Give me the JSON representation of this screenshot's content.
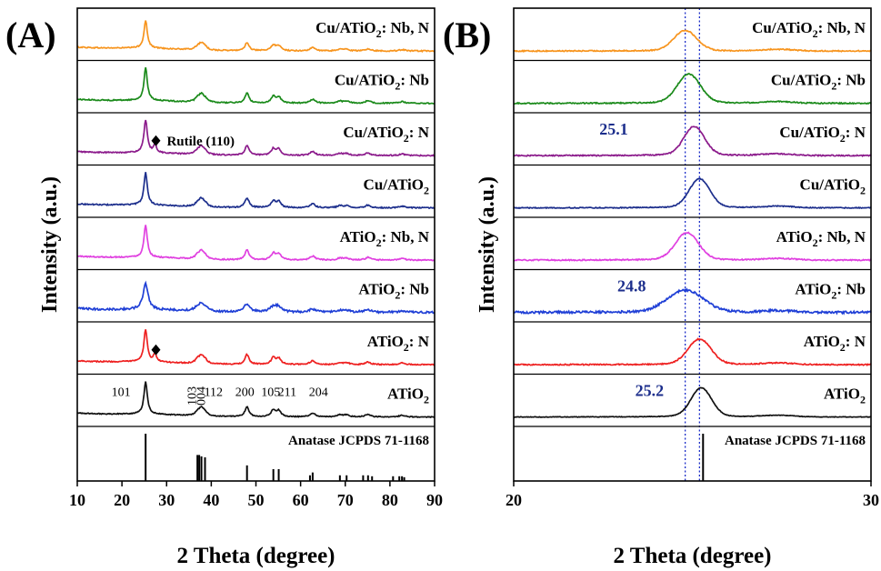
{
  "figure": {
    "panels": [
      {
        "letter": "(A)",
        "xlabel": "2 Theta (degree)",
        "ylabel": "Intensity (a.u.)",
        "xlim": [
          10,
          90
        ],
        "xticks": [
          10,
          20,
          30,
          40,
          50,
          60,
          70,
          80,
          90
        ]
      },
      {
        "letter": "(B)",
        "xlabel": "2 Theta (degree)",
        "ylabel": "Intensity (a.u.)",
        "xlim": [
          20,
          30
        ],
        "xticks": [
          20,
          30
        ]
      }
    ]
  },
  "chart_data": [
    {
      "type": "line",
      "panel": "A",
      "xlabel": "2 Theta (degree)",
      "ylabel": "Intensity (a.u.)",
      "xlim": [
        10,
        90
      ],
      "x_ticks": [
        10,
        20,
        30,
        40,
        50,
        60,
        70,
        80,
        90
      ],
      "stacked": true,
      "y_ticks_shown": false,
      "series": [
        {
          "name": "Cu/ATiO₂: Nb, N",
          "base": "Cu/ATiO",
          "sub": "2",
          "suffix": ": Nb, N",
          "color": "#f7941d",
          "peak_scale": 0.85,
          "width_scale": 1.0,
          "shift": 0,
          "noise": 1.0,
          "rutile": false
        },
        {
          "name": "Cu/ATiO₂: Nb",
          "base": "Cu/ATiO",
          "sub": "2",
          "suffix": ": Nb",
          "color": "#1a8a1a",
          "peak_scale": 1.0,
          "width_scale": 1.0,
          "shift": 0,
          "noise": 1.0,
          "rutile": false
        },
        {
          "name": "Cu/ATiO₂: N",
          "base": "Cu/ATiO",
          "sub": "2",
          "suffix": ": N",
          "color": "#8b1a8b",
          "peak_scale": 1.0,
          "width_scale": 1.0,
          "shift": 0,
          "noise": 1.0,
          "rutile": true
        },
        {
          "name": "Cu/ATiO₂",
          "base": "Cu/ATiO",
          "sub": "2",
          "suffix": "",
          "color": "#1c2e8c",
          "peak_scale": 1.0,
          "width_scale": 1.0,
          "shift": 0,
          "noise": 1.0,
          "rutile": false
        },
        {
          "name": "ATiO₂: Nb, N",
          "base": "ATiO",
          "sub": "2",
          "suffix": ": Nb, N",
          "color": "#e040e0",
          "peak_scale": 1.0,
          "width_scale": 1.0,
          "shift": 0,
          "noise": 1.0,
          "rutile": false
        },
        {
          "name": "ATiO₂: Nb",
          "base": "ATiO",
          "sub": "2",
          "suffix": ": Nb",
          "color": "#1f3fd6",
          "peak_scale": 0.8,
          "width_scale": 1.5,
          "shift": 0,
          "noise": 1.8,
          "rutile": false
        },
        {
          "name": "ATiO₂: N",
          "base": "ATiO",
          "sub": "2",
          "suffix": ": N",
          "color": "#ee2020",
          "peak_scale": 1.0,
          "width_scale": 1.0,
          "shift": 0,
          "noise": 1.0,
          "rutile": true
        },
        {
          "name": "ATiO₂",
          "base": "ATiO",
          "sub": "2",
          "suffix": "",
          "color": "#111111",
          "peak_scale": 1.0,
          "width_scale": 1.0,
          "shift": 0,
          "noise": 0.8,
          "rutile": false
        }
      ],
      "anatase_peaks": [
        {
          "x": 25.3,
          "h": 1.0,
          "w": 0.45
        },
        {
          "x": 37.0,
          "h": 0.12,
          "w": 0.7
        },
        {
          "x": 37.8,
          "h": 0.2,
          "w": 0.6
        },
        {
          "x": 38.6,
          "h": 0.1,
          "w": 0.6
        },
        {
          "x": 48.0,
          "h": 0.3,
          "w": 0.55
        },
        {
          "x": 53.9,
          "h": 0.2,
          "w": 0.6
        },
        {
          "x": 55.1,
          "h": 0.18,
          "w": 0.6
        },
        {
          "x": 62.7,
          "h": 0.12,
          "w": 0.7
        },
        {
          "x": 68.8,
          "h": 0.06,
          "w": 0.7
        },
        {
          "x": 70.3,
          "h": 0.06,
          "w": 0.7
        },
        {
          "x": 75.1,
          "h": 0.08,
          "w": 0.7
        },
        {
          "x": 82.7,
          "h": 0.05,
          "w": 0.8
        }
      ],
      "rutile_peak": {
        "x": 27.4,
        "h": 0.28,
        "w": 0.35
      },
      "rutile_label": "Rutile (110)",
      "miller_indices": [
        {
          "label": "101",
          "x": 19.8,
          "rotate": false
        },
        {
          "label": "103",
          "x": 35.8,
          "rotate": true
        },
        {
          "label": "004",
          "x": 37.8,
          "rotate": true
        },
        {
          "label": "112",
          "x": 40.5,
          "rotate": false
        },
        {
          "label": "200",
          "x": 47.5,
          "rotate": false
        },
        {
          "label": "105",
          "x": 53.3,
          "rotate": false
        },
        {
          "label": "211",
          "x": 57.0,
          "rotate": false
        },
        {
          "label": "204",
          "x": 64.0,
          "rotate": false
        }
      ],
      "reference": {
        "label": "Anatase JCPDS 71-1168",
        "lines": [
          {
            "x": 25.3,
            "h": 1.0
          },
          {
            "x": 36.9,
            "h": 0.55
          },
          {
            "x": 37.3,
            "h": 0.55
          },
          {
            "x": 37.8,
            "h": 0.52
          },
          {
            "x": 38.6,
            "h": 0.5
          },
          {
            "x": 48.0,
            "h": 0.33
          },
          {
            "x": 53.9,
            "h": 0.25
          },
          {
            "x": 55.1,
            "h": 0.25
          },
          {
            "x": 62.1,
            "h": 0.12
          },
          {
            "x": 62.7,
            "h": 0.18
          },
          {
            "x": 68.8,
            "h": 0.12
          },
          {
            "x": 70.3,
            "h": 0.12
          },
          {
            "x": 74.0,
            "h": 0.12
          },
          {
            "x": 75.1,
            "h": 0.12
          },
          {
            "x": 76.0,
            "h": 0.1
          },
          {
            "x": 80.7,
            "h": 0.1
          },
          {
            "x": 82.1,
            "h": 0.1
          },
          {
            "x": 82.7,
            "h": 0.1
          },
          {
            "x": 83.2,
            "h": 0.08
          }
        ]
      }
    },
    {
      "type": "line",
      "panel": "B",
      "xlabel": "2 Theta (degree)",
      "ylabel": "Intensity (a.u.)",
      "xlim": [
        20,
        30
      ],
      "x_ticks": [
        20,
        30
      ],
      "stacked": true,
      "y_ticks_shown": false,
      "dotted_guides": [
        24.8,
        25.2
      ],
      "series": [
        {
          "name": "Cu/ATiO₂: Nb, N",
          "base": "Cu/ATiO",
          "sub": "2",
          "suffix": ": Nb, N",
          "color": "#f7941d",
          "peak_x": 24.8,
          "peak_scale": 0.6,
          "width": 0.45,
          "noise": 1.0
        },
        {
          "name": "Cu/ATiO₂: Nb",
          "base": "Cu/ATiO",
          "sub": "2",
          "suffix": ": Nb",
          "color": "#1a8a1a",
          "peak_x": 24.9,
          "peak_scale": 0.85,
          "width": 0.45,
          "noise": 1.0
        },
        {
          "name": "Cu/ATiO₂: N",
          "base": "Cu/ATiO",
          "sub": "2",
          "suffix": ": N",
          "color": "#8b1a8b",
          "peak_x": 25.05,
          "peak_scale": 0.85,
          "width": 0.4,
          "noise": 1.0
        },
        {
          "name": "Cu/ATiO₂",
          "base": "Cu/ATiO",
          "sub": "2",
          "suffix": "",
          "color": "#1c2e8c",
          "peak_x": 25.2,
          "peak_scale": 0.85,
          "width": 0.4,
          "noise": 0.8
        },
        {
          "name": "ATiO₂: Nb, N",
          "base": "ATiO",
          "sub": "2",
          "suffix": ": Nb, N",
          "color": "#e040e0",
          "peak_x": 24.85,
          "peak_scale": 0.8,
          "width": 0.45,
          "noise": 1.0
        },
        {
          "name": "ATiO₂: Nb",
          "base": "ATiO",
          "sub": "2",
          "suffix": ": Nb",
          "color": "#1f3fd6",
          "peak_x": 24.8,
          "peak_scale": 0.65,
          "width": 0.7,
          "noise": 2.0
        },
        {
          "name": "ATiO₂: N",
          "base": "ATiO",
          "sub": "2",
          "suffix": ": N",
          "color": "#ee2020",
          "peak_x": 25.2,
          "peak_scale": 0.75,
          "width": 0.45,
          "noise": 1.0
        },
        {
          "name": "ATiO₂",
          "base": "ATiO",
          "sub": "2",
          "suffix": "",
          "color": "#111111",
          "peak_x": 25.25,
          "peak_scale": 0.85,
          "width": 0.4,
          "noise": 0.5
        }
      ],
      "annotations": [
        {
          "text": "25.1",
          "row": 2,
          "x": 22.8
        },
        {
          "text": "24.8",
          "row": 5,
          "x": 23.3
        },
        {
          "text": "25.2",
          "row": 7,
          "x": 23.8
        }
      ],
      "reference": {
        "label": "Anatase JCPDS 71-1168",
        "lines": [
          {
            "x": 25.3,
            "h": 1.0
          }
        ]
      }
    }
  ]
}
